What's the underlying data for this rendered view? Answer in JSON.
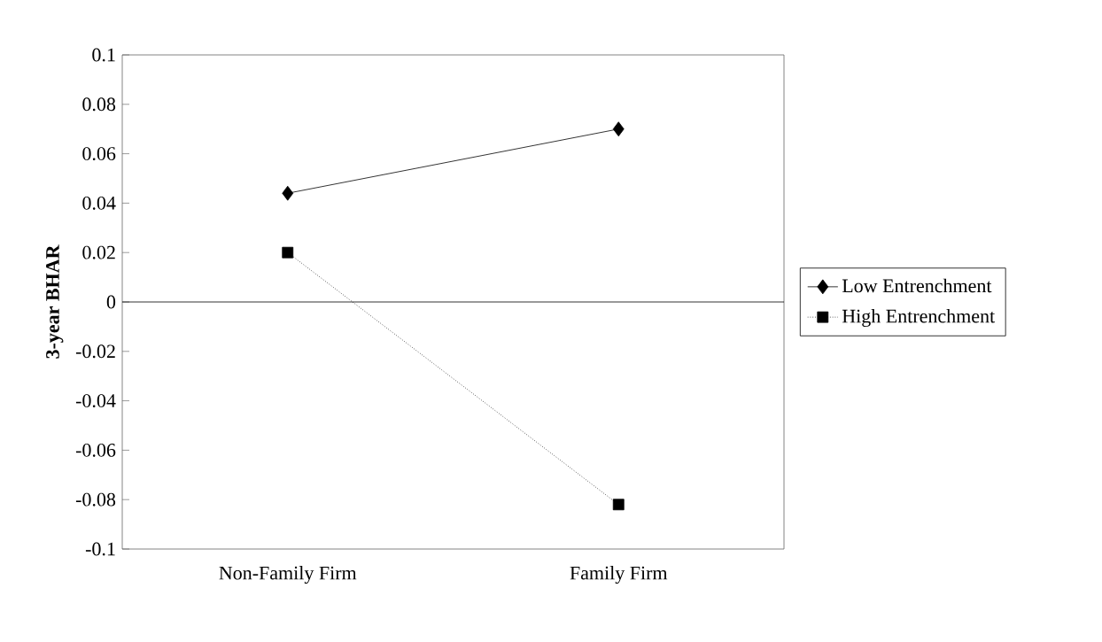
{
  "chart_data": {
    "type": "line",
    "ylabel": "3-year BHAR",
    "categories": [
      "Non-Family Firm",
      "Family Firm"
    ],
    "series": [
      {
        "name": "Low Entrenchment",
        "color": "#000000",
        "values": [
          0.044,
          0.07
        ],
        "marker": "diamond",
        "line_style": "solid"
      },
      {
        "name": "High Entrenchment",
        "color": "#000000",
        "values": [
          0.02,
          -0.082
        ],
        "marker": "square",
        "line_style": "dotted"
      }
    ],
    "ylim": [
      -0.1,
      0.1
    ],
    "yticks": [
      -0.1,
      -0.08,
      -0.06,
      -0.04,
      -0.02,
      0,
      0.02,
      0.04,
      0.06,
      0.08,
      0.1
    ],
    "legend": "right"
  }
}
